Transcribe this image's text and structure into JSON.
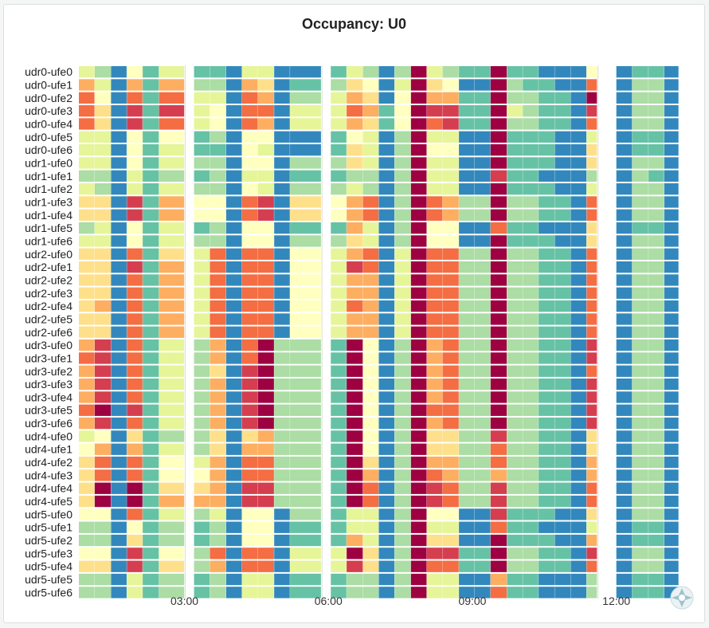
{
  "panel": {
    "title": "Occupancy: U0"
  },
  "chart_data": {
    "type": "heatmap",
    "title": "Occupancy: U0",
    "xlabel": "",
    "ylabel": "",
    "rows": [
      "udr0-ufe0",
      "udr0-ufe1",
      "udr0-ufe2",
      "udr0-ufe3",
      "udr0-ufe4",
      "udr0-ufe5",
      "udr0-ufe6",
      "udr1-ufe0",
      "udr1-ufe1",
      "udr1-ufe2",
      "udr1-ufe3",
      "udr1-ufe4",
      "udr1-ufe5",
      "udr1-ufe6",
      "udr2-ufe0",
      "udr2-ufe1",
      "udr2-ufe2",
      "udr2-ufe3",
      "udr2-ufe4",
      "udr2-ufe5",
      "udr2-ufe6",
      "udr3-ufe0",
      "udr3-ufe1",
      "udr3-ufe2",
      "udr3-ufe3",
      "udr3-ufe4",
      "udr3-ufe5",
      "udr3-ufe6",
      "udr4-ufe0",
      "udr4-ufe1",
      "udr4-ufe2",
      "udr4-ufe3",
      "udr4-ufe4",
      "udr4-ufe5",
      "udr5-ufe0",
      "udr5-ufe1",
      "udr5-ufe2",
      "udr5-ufe3",
      "udr5-ufe4",
      "udr5-ufe5",
      "udr5-ufe6"
    ],
    "x_ticks": [
      "03:00",
      "06:00",
      "09:00",
      "12:00"
    ],
    "x_tick_hours": [
      3,
      6,
      9,
      12
    ],
    "x_range_hours": [
      0.8,
      13.3
    ],
    "gaps_hours": [
      [
        3.0,
        3.2
      ],
      [
        5.85,
        6.05
      ],
      [
        11.6,
        12.0
      ]
    ],
    "color_scale": {
      "name": "spectral",
      "min": 0,
      "max": 10,
      "colors": [
        "#5e4fa2",
        "#3288bd",
        "#66c2a5",
        "#abdda4",
        "#e6f598",
        "#ffffbf",
        "#fee08b",
        "#fdae61",
        "#f46d43",
        "#d53e4f",
        "#9e0142"
      ]
    },
    "columns_hours": [
      0.8,
      1.13,
      1.47,
      1.8,
      2.13,
      2.47,
      3.2,
      3.53,
      3.87,
      4.2,
      4.53,
      4.87,
      5.2,
      6.05,
      6.38,
      6.72,
      7.05,
      7.38,
      7.72,
      8.05,
      8.38,
      8.72,
      9.05,
      9.38,
      9.72,
      10.05,
      10.38,
      10.72,
      11.05,
      11.38,
      12.0,
      12.33,
      12.67,
      13.0
    ],
    "values": [
      [
        4,
        3,
        1,
        5,
        2,
        4,
        2,
        2,
        1,
        4,
        4,
        1,
        1,
        2,
        4,
        3,
        1,
        3,
        10,
        4,
        3,
        2,
        2,
        10,
        2,
        2,
        1,
        1,
        1,
        5,
        1,
        2,
        2,
        1
      ],
      [
        7,
        4,
        1,
        7,
        2,
        7,
        3,
        3,
        1,
        7,
        6,
        1,
        2,
        3,
        6,
        5,
        1,
        4,
        10,
        6,
        5,
        1,
        1,
        10,
        3,
        2,
        2,
        1,
        1,
        8,
        1,
        3,
        3,
        1
      ],
      [
        8,
        5,
        1,
        8,
        2,
        8,
        4,
        4,
        1,
        8,
        7,
        1,
        3,
        4,
        7,
        6,
        1,
        5,
        10,
        7,
        7,
        2,
        2,
        10,
        3,
        3,
        2,
        2,
        1,
        10,
        1,
        3,
        3,
        1
      ],
      [
        8,
        6,
        1,
        9,
        2,
        9,
        4,
        5,
        1,
        8,
        8,
        1,
        4,
        4,
        8,
        7,
        2,
        5,
        10,
        9,
        9,
        2,
        2,
        10,
        4,
        3,
        2,
        2,
        1,
        9,
        1,
        3,
        3,
        1
      ],
      [
        8,
        6,
        1,
        9,
        2,
        8,
        4,
        5,
        1,
        8,
        7,
        1,
        4,
        4,
        7,
        6,
        2,
        5,
        10,
        8,
        9,
        2,
        2,
        10,
        3,
        3,
        2,
        2,
        1,
        8,
        1,
        3,
        3,
        1
      ],
      [
        4,
        4,
        1,
        5,
        2,
        5,
        2,
        3,
        1,
        5,
        5,
        1,
        1,
        2,
        5,
        4,
        1,
        3,
        10,
        4,
        4,
        1,
        1,
        10,
        2,
        2,
        2,
        1,
        1,
        4,
        1,
        2,
        2,
        1
      ],
      [
        4,
        4,
        1,
        5,
        2,
        4,
        2,
        2,
        1,
        5,
        4,
        1,
        1,
        2,
        6,
        4,
        1,
        3,
        10,
        5,
        5,
        1,
        1,
        10,
        2,
        2,
        2,
        1,
        1,
        6,
        1,
        2,
        2,
        1
      ],
      [
        4,
        4,
        1,
        5,
        2,
        4,
        3,
        3,
        1,
        5,
        5,
        1,
        3,
        3,
        6,
        4,
        1,
        3,
        10,
        4,
        4,
        1,
        1,
        10,
        2,
        2,
        2,
        1,
        1,
        6,
        1,
        3,
        3,
        1
      ],
      [
        3,
        3,
        1,
        4,
        2,
        3,
        2,
        3,
        1,
        4,
        4,
        1,
        2,
        2,
        3,
        3,
        1,
        3,
        10,
        4,
        4,
        1,
        1,
        9,
        2,
        2,
        1,
        1,
        1,
        3,
        1,
        3,
        2,
        1
      ],
      [
        4,
        3,
        1,
        4,
        2,
        4,
        3,
        3,
        1,
        5,
        4,
        1,
        3,
        3,
        4,
        3,
        1,
        3,
        10,
        4,
        4,
        1,
        1,
        10,
        2,
        2,
        2,
        1,
        1,
        4,
        1,
        3,
        3,
        1
      ],
      [
        6,
        6,
        1,
        9,
        2,
        7,
        5,
        5,
        1,
        8,
        9,
        1,
        6,
        5,
        7,
        8,
        1,
        3,
        10,
        8,
        7,
        3,
        3,
        10,
        3,
        3,
        2,
        2,
        1,
        8,
        1,
        3,
        3,
        1
      ],
      [
        6,
        6,
        1,
        9,
        2,
        7,
        5,
        5,
        1,
        8,
        9,
        1,
        6,
        5,
        7,
        8,
        1,
        3,
        10,
        8,
        7,
        3,
        3,
        10,
        3,
        3,
        2,
        2,
        1,
        8,
        1,
        3,
        3,
        1
      ],
      [
        3,
        4,
        1,
        5,
        2,
        4,
        2,
        3,
        1,
        5,
        5,
        1,
        2,
        2,
        7,
        4,
        1,
        3,
        10,
        5,
        5,
        1,
        1,
        8,
        2,
        2,
        1,
        1,
        1,
        6,
        1,
        2,
        2,
        1
      ],
      [
        4,
        4,
        1,
        5,
        2,
        4,
        3,
        3,
        1,
        5,
        5,
        1,
        3,
        3,
        6,
        4,
        1,
        3,
        10,
        5,
        5,
        1,
        1,
        10,
        2,
        2,
        2,
        1,
        1,
        6,
        1,
        3,
        3,
        1
      ],
      [
        6,
        6,
        1,
        8,
        2,
        6,
        4,
        8,
        1,
        8,
        8,
        1,
        5,
        4,
        7,
        8,
        1,
        4,
        10,
        8,
        8,
        3,
        3,
        10,
        3,
        3,
        2,
        2,
        1,
        8,
        1,
        3,
        3,
        1
      ],
      [
        6,
        6,
        1,
        9,
        2,
        7,
        4,
        8,
        1,
        8,
        8,
        1,
        5,
        4,
        9,
        8,
        1,
        4,
        10,
        8,
        8,
        3,
        3,
        10,
        3,
        3,
        2,
        2,
        1,
        8,
        1,
        3,
        3,
        1
      ],
      [
        6,
        6,
        1,
        8,
        2,
        7,
        4,
        8,
        1,
        8,
        8,
        1,
        5,
        4,
        7,
        7,
        1,
        4,
        10,
        8,
        8,
        3,
        3,
        10,
        3,
        3,
        2,
        2,
        1,
        8,
        1,
        3,
        3,
        1
      ],
      [
        6,
        6,
        1,
        8,
        2,
        7,
        4,
        8,
        1,
        8,
        8,
        1,
        5,
        4,
        7,
        7,
        1,
        4,
        10,
        8,
        8,
        3,
        3,
        10,
        3,
        3,
        2,
        2,
        1,
        8,
        1,
        3,
        3,
        1
      ],
      [
        6,
        7,
        1,
        8,
        2,
        7,
        4,
        8,
        1,
        8,
        8,
        1,
        5,
        4,
        8,
        7,
        1,
        4,
        10,
        8,
        8,
        3,
        3,
        10,
        3,
        3,
        2,
        2,
        1,
        8,
        1,
        3,
        3,
        1
      ],
      [
        6,
        6,
        1,
        8,
        2,
        7,
        4,
        8,
        1,
        8,
        8,
        1,
        5,
        4,
        7,
        7,
        1,
        4,
        10,
        8,
        8,
        3,
        3,
        10,
        3,
        3,
        2,
        2,
        1,
        8,
        1,
        3,
        3,
        1
      ],
      [
        6,
        6,
        1,
        8,
        2,
        7,
        4,
        8,
        1,
        8,
        8,
        1,
        5,
        4,
        7,
        7,
        1,
        4,
        10,
        8,
        8,
        3,
        3,
        10,
        3,
        3,
        2,
        2,
        1,
        8,
        1,
        3,
        3,
        1
      ],
      [
        7,
        9,
        1,
        8,
        2,
        4,
        3,
        7,
        1,
        8,
        10,
        3,
        3,
        2,
        10,
        5,
        1,
        3,
        10,
        7,
        8,
        3,
        3,
        10,
        3,
        3,
        2,
        2,
        1,
        9,
        1,
        3,
        3,
        1
      ],
      [
        8,
        9,
        1,
        8,
        2,
        4,
        3,
        7,
        1,
        8,
        10,
        3,
        3,
        2,
        10,
        5,
        1,
        3,
        10,
        7,
        8,
        3,
        3,
        10,
        3,
        3,
        2,
        2,
        1,
        9,
        1,
        3,
        3,
        1
      ],
      [
        7,
        9,
        1,
        8,
        2,
        4,
        3,
        6,
        1,
        9,
        10,
        3,
        3,
        2,
        10,
        5,
        1,
        3,
        10,
        7,
        8,
        3,
        3,
        10,
        3,
        3,
        2,
        2,
        1,
        8,
        1,
        3,
        3,
        1
      ],
      [
        7,
        9,
        1,
        8,
        2,
        4,
        3,
        7,
        1,
        9,
        10,
        3,
        3,
        2,
        10,
        5,
        1,
        3,
        10,
        7,
        8,
        3,
        3,
        10,
        3,
        3,
        2,
        2,
        1,
        9,
        1,
        3,
        3,
        1
      ],
      [
        7,
        9,
        1,
        8,
        2,
        4,
        3,
        7,
        1,
        9,
        10,
        3,
        3,
        2,
        10,
        5,
        1,
        3,
        10,
        7,
        8,
        3,
        3,
        10,
        3,
        3,
        2,
        2,
        1,
        9,
        1,
        3,
        3,
        1
      ],
      [
        8,
        10,
        1,
        9,
        2,
        4,
        3,
        7,
        1,
        9,
        10,
        3,
        3,
        2,
        10,
        5,
        1,
        3,
        10,
        8,
        8,
        3,
        3,
        10,
        3,
        3,
        2,
        2,
        1,
        9,
        1,
        3,
        3,
        1
      ],
      [
        7,
        9,
        1,
        8,
        2,
        4,
        3,
        7,
        1,
        9,
        10,
        3,
        3,
        2,
        10,
        5,
        1,
        3,
        10,
        7,
        8,
        3,
        3,
        10,
        3,
        3,
        2,
        2,
        1,
        9,
        1,
        3,
        3,
        1
      ],
      [
        4,
        5,
        1,
        6,
        2,
        3,
        3,
        6,
        1,
        6,
        7,
        3,
        3,
        2,
        10,
        5,
        1,
        3,
        10,
        6,
        6,
        3,
        3,
        9,
        3,
        3,
        2,
        2,
        1,
        6,
        1,
        3,
        3,
        1
      ],
      [
        5,
        7,
        1,
        7,
        2,
        4,
        3,
        6,
        1,
        7,
        7,
        3,
        3,
        2,
        10,
        5,
        1,
        3,
        10,
        6,
        6,
        3,
        3,
        8,
        3,
        3,
        2,
        2,
        1,
        6,
        1,
        3,
        3,
        1
      ],
      [
        6,
        8,
        1,
        8,
        2,
        5,
        4,
        7,
        1,
        8,
        8,
        3,
        3,
        2,
        10,
        6,
        1,
        3,
        10,
        7,
        7,
        3,
        3,
        8,
        3,
        3,
        2,
        2,
        1,
        7,
        1,
        3,
        3,
        1
      ],
      [
        6,
        8,
        1,
        8,
        2,
        5,
        5,
        7,
        1,
        8,
        8,
        3,
        3,
        2,
        10,
        7,
        1,
        3,
        10,
        8,
        7,
        3,
        3,
        7,
        3,
        3,
        2,
        2,
        1,
        7,
        1,
        3,
        3,
        1
      ],
      [
        6,
        10,
        1,
        10,
        2,
        6,
        6,
        7,
        1,
        9,
        9,
        3,
        3,
        2,
        10,
        8,
        1,
        3,
        10,
        9,
        8,
        3,
        3,
        9,
        3,
        3,
        2,
        2,
        1,
        8,
        1,
        3,
        3,
        1
      ],
      [
        6,
        10,
        1,
        10,
        2,
        7,
        7,
        7,
        1,
        9,
        9,
        3,
        3,
        2,
        10,
        8,
        1,
        3,
        10,
        9,
        8,
        3,
        3,
        9,
        3,
        3,
        2,
        2,
        1,
        8,
        1,
        3,
        3,
        1
      ],
      [
        5,
        5,
        1,
        8,
        2,
        4,
        3,
        4,
        1,
        5,
        5,
        1,
        3,
        2,
        4,
        4,
        1,
        3,
        10,
        5,
        5,
        1,
        1,
        9,
        2,
        2,
        2,
        1,
        1,
        6,
        1,
        3,
        3,
        1
      ],
      [
        3,
        3,
        1,
        5,
        2,
        3,
        2,
        3,
        1,
        5,
        5,
        1,
        2,
        2,
        4,
        4,
        1,
        3,
        10,
        4,
        4,
        1,
        1,
        8,
        2,
        2,
        1,
        1,
        1,
        4,
        1,
        2,
        2,
        1
      ],
      [
        3,
        3,
        1,
        6,
        2,
        3,
        2,
        3,
        1,
        5,
        5,
        1,
        2,
        2,
        7,
        4,
        1,
        3,
        10,
        6,
        6,
        1,
        1,
        10,
        2,
        2,
        2,
        1,
        1,
        7,
        1,
        2,
        2,
        1
      ],
      [
        5,
        5,
        1,
        9,
        2,
        5,
        3,
        8,
        1,
        8,
        8,
        1,
        4,
        4,
        10,
        6,
        1,
        3,
        10,
        9,
        9,
        2,
        2,
        10,
        3,
        3,
        2,
        2,
        1,
        9,
        1,
        3,
        3,
        1
      ],
      [
        6,
        6,
        1,
        9,
        2,
        6,
        3,
        7,
        1,
        8,
        8,
        1,
        4,
        4,
        9,
        6,
        1,
        3,
        10,
        8,
        8,
        2,
        2,
        10,
        3,
        3,
        2,
        2,
        1,
        8,
        1,
        3,
        3,
        1
      ],
      [
        3,
        3,
        1,
        4,
        2,
        3,
        2,
        3,
        1,
        4,
        4,
        1,
        2,
        2,
        3,
        3,
        1,
        3,
        10,
        4,
        4,
        1,
        1,
        7,
        2,
        2,
        1,
        1,
        1,
        3,
        1,
        2,
        2,
        1
      ],
      [
        3,
        3,
        1,
        4,
        2,
        3,
        2,
        3,
        1,
        4,
        4,
        1,
        2,
        2,
        3,
        3,
        1,
        3,
        10,
        4,
        4,
        1,
        1,
        8,
        2,
        2,
        1,
        1,
        1,
        3,
        1,
        2,
        2,
        1
      ]
    ]
  }
}
